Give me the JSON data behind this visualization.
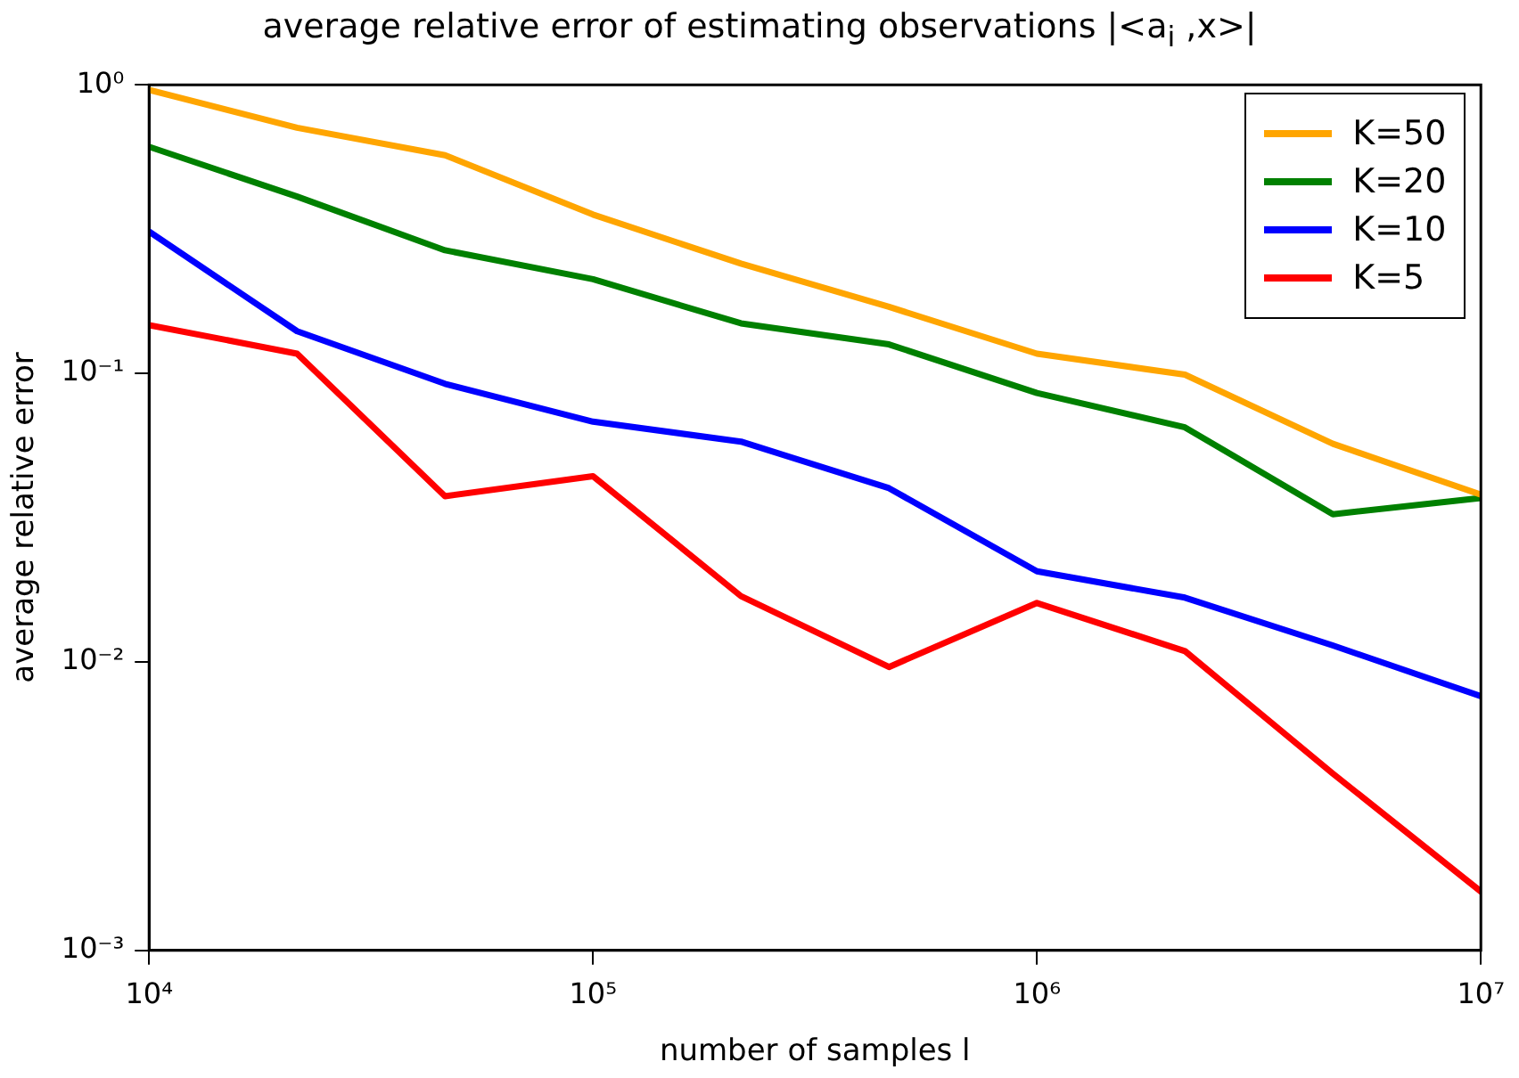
{
  "chart_data": {
    "type": "line",
    "title": "average relative error of estimating observations |<a$_{i}$ ,x>|",
    "xlabel": "number of samples l",
    "ylabel": "average relative error",
    "log": "xy",
    "grid": false,
    "legend": "top right",
    "line_style": "solid",
    "marker": "none",
    "x": [
      10000,
      21544,
      46416,
      100000,
      215443,
      464159,
      1000000,
      2154435,
      4641589,
      10000000
    ],
    "xlim": [
      10000,
      10000000
    ],
    "xticks": [
      {
        "value": 10000,
        "label": "10⁴"
      },
      {
        "value": 100000,
        "label": "10⁵"
      },
      {
        "value": 1000000,
        "label": "10⁶"
      },
      {
        "value": 10000000,
        "label": "10⁷"
      }
    ],
    "ylim": [
      0.001,
      1
    ],
    "yticks": [
      {
        "value": 0.001,
        "label": "10⁻³"
      },
      {
        "value": 0.01,
        "label": "10⁻²"
      },
      {
        "value": 0.1,
        "label": "10⁻¹"
      },
      {
        "value": 1,
        "label": "10⁰"
      }
    ],
    "series": [
      {
        "name": "K=50",
        "color": "#ffa500",
        "values": [
          0.96,
          0.71,
          0.57,
          0.355,
          0.24,
          0.17,
          0.117,
          0.099,
          0.057,
          0.038
        ]
      },
      {
        "name": "K=20",
        "color": "#008000",
        "values": [
          0.61,
          0.41,
          0.267,
          0.212,
          0.149,
          0.126,
          0.0855,
          0.065,
          0.0325,
          0.037
        ]
      },
      {
        "name": "K=10",
        "color": "#0000ff",
        "values": [
          0.31,
          0.14,
          0.092,
          0.068,
          0.058,
          0.04,
          0.0206,
          0.0167,
          0.0114,
          0.0076
        ]
      },
      {
        "name": "K=5",
        "color": "#ff0000",
        "values": [
          0.147,
          0.117,
          0.0375,
          0.044,
          0.0169,
          0.0096,
          0.016,
          0.0109,
          0.0041,
          0.0016
        ]
      }
    ]
  }
}
